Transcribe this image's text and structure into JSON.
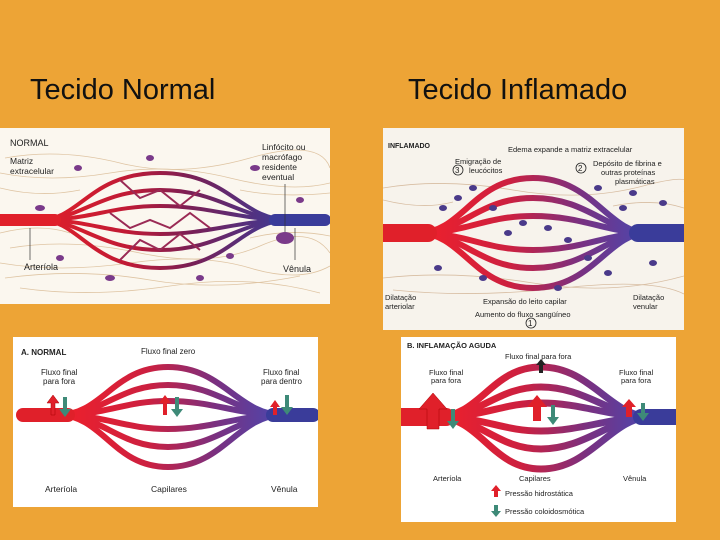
{
  "headings": {
    "left": "Tecido Normal",
    "right": "Tecido Inflamado"
  },
  "top_left": {
    "title": "NORMAL",
    "matrix_1": "Matriz",
    "matrix_2": "extracelular",
    "cell_1": "Linfócito ou",
    "cell_2": "macrófago",
    "cell_3": "residente",
    "cell_4": "eventual",
    "arteriole": "Arteríola",
    "venule": "Vênula"
  },
  "top_right": {
    "title": "INFLAMADO",
    "edema": "Edema expande a matriz extracelular",
    "emig_1": "Emigração de",
    "emig_2": "leucócitos",
    "emig_num": "3",
    "fib_num": "2",
    "fib_1": "Depósito de fibrina e",
    "fib_2": "outras proteínas",
    "fib_3": "plasmáticas",
    "dil_art_1": "Dilatação",
    "dil_art_2": "arteriolar",
    "expansion": "Expansão do leito capilar",
    "dil_ven_1": "Dilatação",
    "dil_ven_2": "venular",
    "flow": "Aumento do fluxo sangüíneo",
    "flow_num": "1"
  },
  "bottom_left": {
    "title": "A. NORMAL",
    "zero": "Fluxo final zero",
    "out_1": "Fluxo final",
    "out_2": "para fora",
    "in_1": "Fluxo final",
    "in_2": "para dentro",
    "arteriole": "Arteríola",
    "capillaries": "Capilares",
    "venule": "Vênula"
  },
  "bottom_right": {
    "title": "B. INFLAMAÇÃO AGUDA",
    "top_out": "Fluxo final para fora",
    "out_left_1": "Fluxo final",
    "out_left_2": "para fora",
    "out_right_1": "Fluxo final",
    "out_right_2": "para fora",
    "arteriole": "Arteríola",
    "capillaries": "Capilares",
    "venule": "Vênula",
    "legend_hydro": "Pressão hidrostática",
    "legend_colloid": "Pressão coloidosmótica"
  },
  "colors": {
    "background": "#EDA436",
    "artery": "#e0202a",
    "vein": "#3a3c9a",
    "mid": "#8a2050",
    "hydrostatic_arrow": "#e0202a",
    "colloid_arrow": "#3e8a78"
  }
}
